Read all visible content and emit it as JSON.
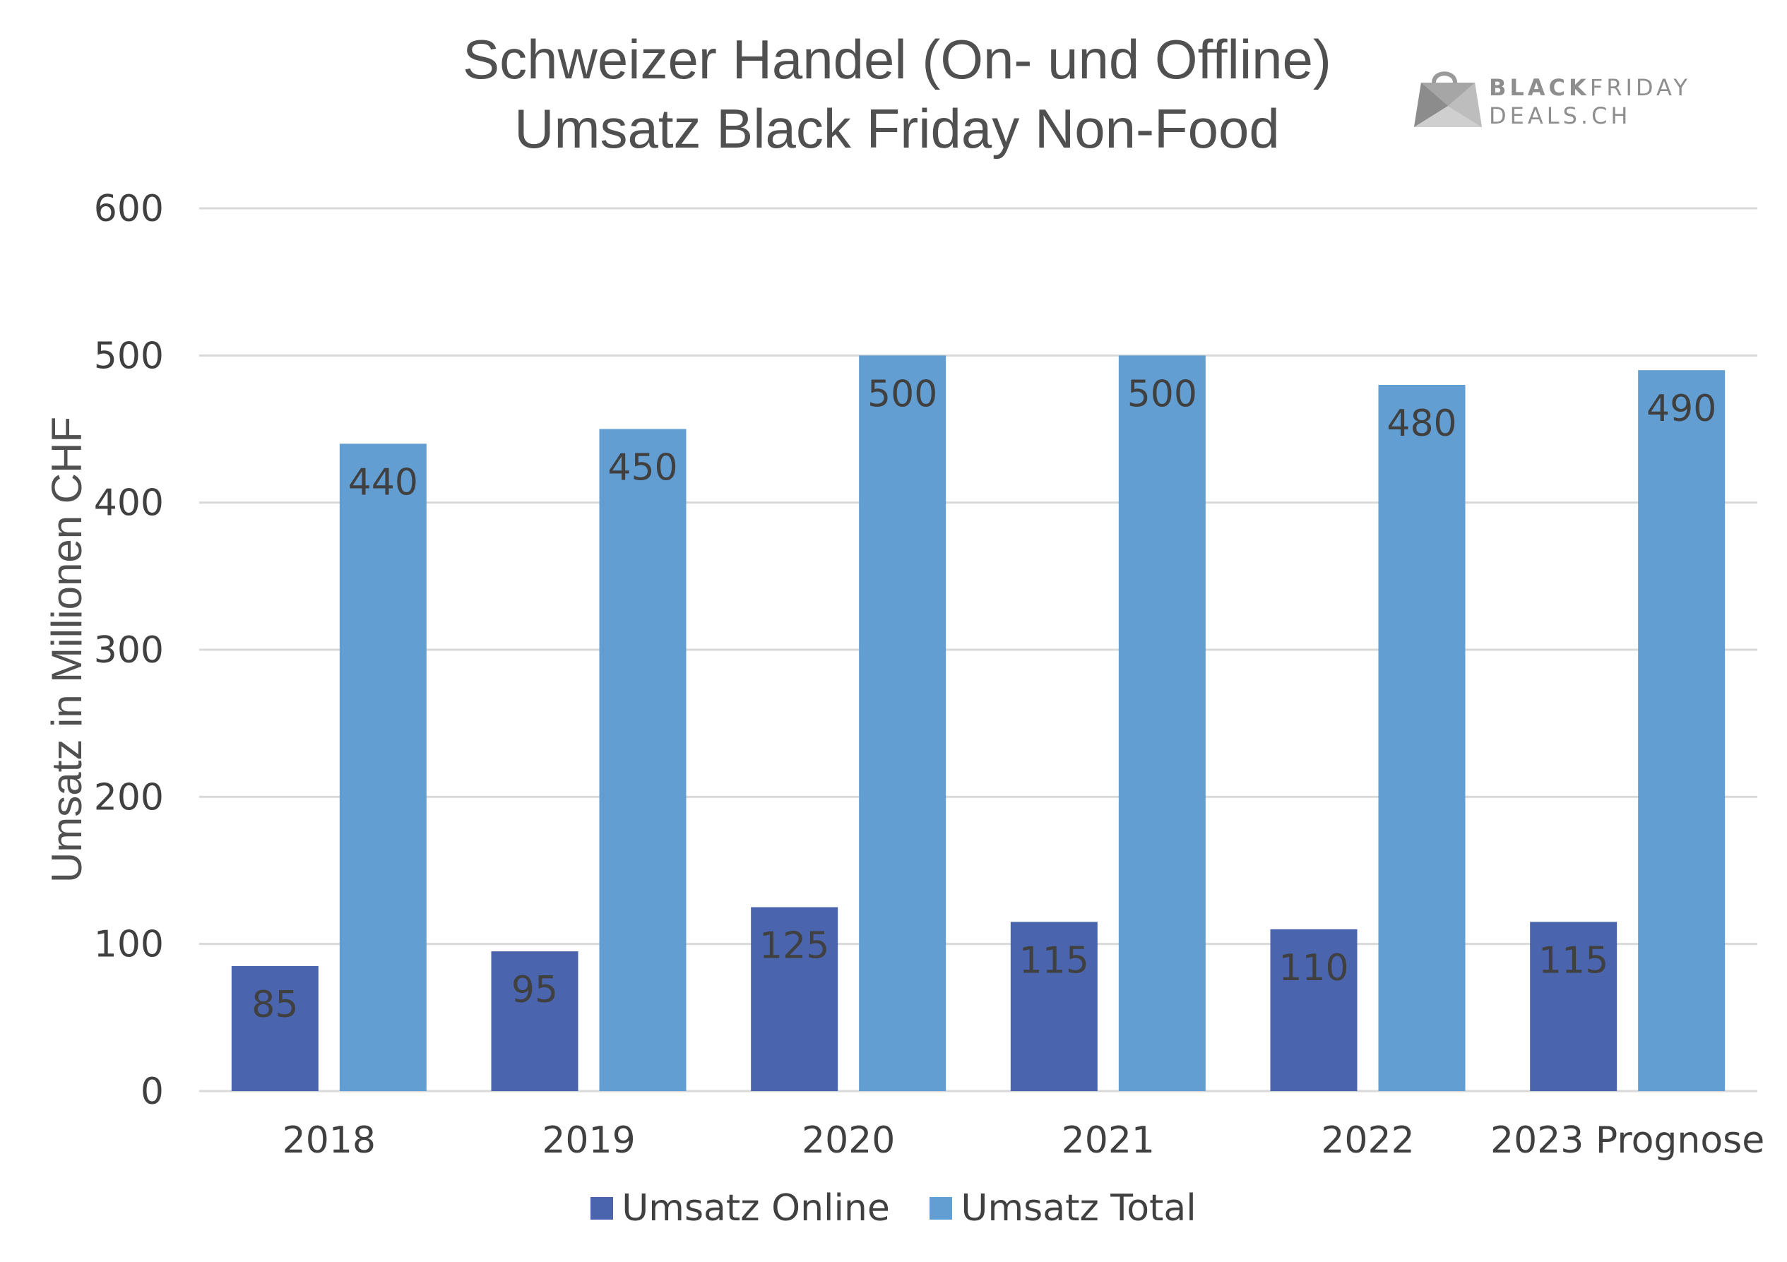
{
  "title_line1": "Schweizer Handel (On- und Offline)",
  "title_line2": "Umsatz Black Friday Non-Food",
  "logo": {
    "line1_bold": "BLACK",
    "line1_rest": "FRIDAY",
    "line2": "DEALS.CH"
  },
  "colors": {
    "online": "#4a65ae",
    "total": "#629ed1",
    "grid": "#d9d9d9",
    "text": "#404040"
  },
  "chart_data": {
    "type": "bar",
    "categories": [
      "2018",
      "2019",
      "2020",
      "2021",
      "2022",
      "2023 Prognose"
    ],
    "series": [
      {
        "name": "Umsatz Online",
        "values": [
          85,
          95,
          125,
          115,
          110,
          115
        ]
      },
      {
        "name": "Umsatz Total",
        "values": [
          440,
          450,
          500,
          500,
          480,
          490
        ]
      }
    ],
    "title": "Schweizer Handel (On- und Offline) Umsatz Black Friday Non-Food",
    "xlabel": "",
    "ylabel": "Umsatz in Millionen CHF",
    "ylim": [
      0,
      600
    ],
    "yticks": [
      0,
      100,
      200,
      300,
      400,
      500,
      600
    ],
    "grid": true,
    "legend_position": "bottom"
  }
}
